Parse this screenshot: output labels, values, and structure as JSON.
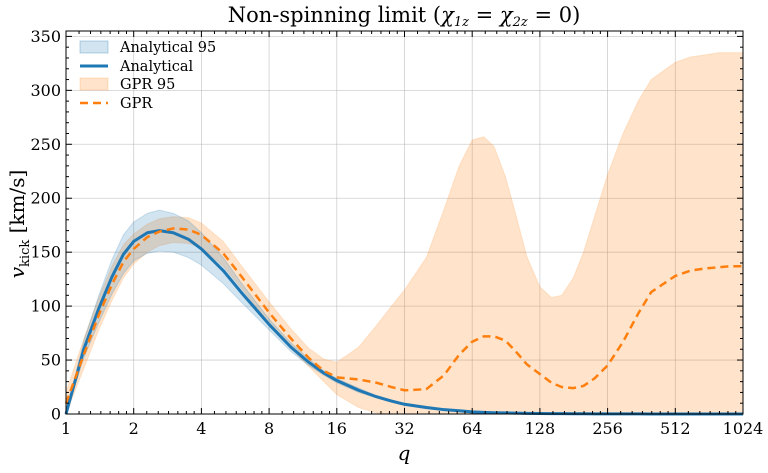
{
  "chart_data": {
    "type": "line",
    "title": "Non-spinning limit (χ1z = χ2z = 0)",
    "title_parts": {
      "main": "Non-spinning limit (",
      "chi1": "χ",
      "sub1": "1z",
      "eq1": " = ",
      "chi2": "χ",
      "sub2": "2z",
      "eq2": " = 0)"
    },
    "xlabel": "q",
    "ylabel": {
      "main": "v",
      "sub": "kick",
      "unit": " [km/s]"
    },
    "x_scale": "log2",
    "xlim": [
      1,
      1024
    ],
    "ylim": [
      0,
      355
    ],
    "x_ticks": [
      1,
      2,
      4,
      8,
      16,
      32,
      64,
      128,
      256,
      512,
      1024
    ],
    "x_tick_labels": [
      "1",
      "2",
      "4",
      "8",
      "16",
      "32",
      "64",
      "128",
      "256",
      "512",
      "1024"
    ],
    "y_ticks": [
      0,
      50,
      100,
      150,
      200,
      250,
      300,
      350
    ],
    "y_tick_labels": [
      "0",
      "50",
      "100",
      "150",
      "200",
      "250",
      "300",
      "350"
    ],
    "grid": true,
    "legend_position": "top-left",
    "legend": [
      {
        "label": "Analytical 95",
        "kind": "band",
        "color": "#1f77b4"
      },
      {
        "label": "Analytical",
        "kind": "line",
        "color": "#1f77b4"
      },
      {
        "label": "GPR 95",
        "kind": "band",
        "color": "#ff7f0e"
      },
      {
        "label": "GPR",
        "kind": "dashed",
        "color": "#ff7f0e"
      }
    ],
    "x": [
      1,
      1.2,
      1.4,
      1.6,
      1.8,
      2,
      2.3,
      2.6,
      3,
      3.5,
      4,
      5,
      6,
      8,
      10,
      12,
      14,
      16,
      20,
      24,
      28,
      32,
      40,
      48,
      56,
      64,
      72,
      80,
      90,
      100,
      112,
      128,
      144,
      160,
      180,
      200,
      224,
      256,
      300,
      350,
      400,
      512,
      600,
      700,
      800,
      900,
      1024
    ],
    "series": [
      {
        "name": "Analytical",
        "color": "#1f77b4",
        "style": "solid",
        "values": [
          0,
          60,
          98,
          127,
          148,
          160,
          168,
          170,
          168,
          162,
          153,
          133,
          113,
          83,
          62,
          48,
          38,
          31,
          22,
          16,
          12,
          9,
          6,
          4,
          3,
          2,
          1.5,
          1.2,
          1,
          0.8,
          0.6,
          0.5,
          0.4,
          0.3,
          0.25,
          0.2,
          0.15,
          0.1,
          0.1,
          0.1,
          0,
          0,
          0,
          0,
          0,
          0,
          0
        ]
      },
      {
        "name": "Analytical 95",
        "color": "#1f77b4",
        "style": "band",
        "lower": [
          0,
          52,
          85,
          111,
          130,
          142,
          149,
          151,
          150,
          145,
          138,
          121,
          104,
          78,
          58,
          45,
          36,
          29,
          20,
          15,
          11,
          8,
          5,
          3.5,
          2.5,
          1.8,
          1.3,
          1,
          0.8,
          0.6,
          0.5,
          0.4,
          0.3,
          0.25,
          0.2,
          0.15,
          0.1,
          0.1,
          0,
          0,
          0,
          0,
          0,
          0,
          0,
          0,
          0
        ],
        "upper": [
          0,
          68,
          110,
          143,
          166,
          178,
          186,
          189,
          186,
          179,
          168,
          145,
          122,
          88,
          66,
          51,
          40,
          33,
          24,
          17,
          13,
          10,
          7,
          5,
          3.5,
          2.5,
          2,
          1.5,
          1.2,
          1,
          0.8,
          0.6,
          0.5,
          0.4,
          0.3,
          0.25,
          0.2,
          0.15,
          0.1,
          0.1,
          0.1,
          0,
          0,
          0,
          0,
          0,
          0
        ]
      },
      {
        "name": "GPR",
        "color": "#ff7f0e",
        "style": "dashed",
        "values": [
          10,
          55,
          92,
          120,
          141,
          153,
          164,
          169,
          172,
          171,
          166,
          149,
          128,
          94,
          70,
          52,
          40,
          34,
          32,
          29,
          25,
          22,
          23,
          36,
          55,
          67,
          72,
          72,
          68,
          58,
          46,
          37,
          29,
          25,
          24,
          26,
          33,
          45,
          67,
          93,
          113,
          128,
          133,
          135,
          136,
          137,
          137
        ]
      },
      {
        "name": "GPR 95",
        "color": "#ff7f0e",
        "style": "band",
        "lower": [
          0,
          42,
          78,
          105,
          126,
          139,
          150,
          156,
          159,
          158,
          154,
          137,
          117,
          84,
          61,
          44,
          30,
          18,
          6,
          1,
          0,
          0,
          0,
          0,
          0,
          0,
          0,
          0,
          0,
          0,
          0,
          0,
          0,
          0,
          0,
          0,
          0,
          0,
          0,
          0,
          0,
          0,
          0,
          0,
          0,
          0,
          0
        ],
        "upper": [
          20,
          70,
          108,
          137,
          157,
          167,
          176,
          181,
          183,
          182,
          177,
          160,
          138,
          104,
          79,
          61,
          51,
          48,
          62,
          82,
          100,
          115,
          145,
          190,
          230,
          254,
          257,
          248,
          220,
          185,
          146,
          118,
          108,
          110,
          126,
          150,
          183,
          222,
          260,
          290,
          310,
          326,
          331,
          333,
          335,
          335,
          335
        ]
      }
    ]
  }
}
